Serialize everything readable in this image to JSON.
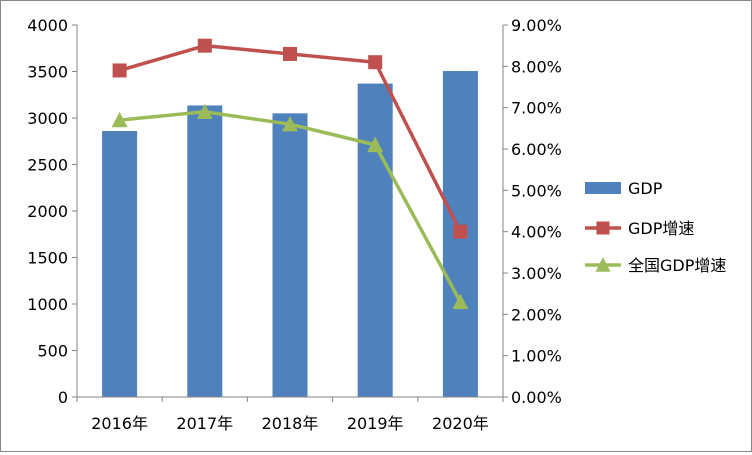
{
  "chart_data": {
    "type": "bar",
    "categories": [
      "2016年",
      "2017年",
      "2018年",
      "2019年",
      "2020年"
    ],
    "y_left": {
      "ylim": [
        0,
        4000
      ],
      "ticks": [
        "0",
        "500",
        "1000",
        "1500",
        "2000",
        "2500",
        "3000",
        "3500",
        "4000"
      ]
    },
    "y_right": {
      "ylim": [
        0,
        0.09
      ],
      "ticks": [
        "0.00%",
        "1.00%",
        "2.00%",
        "3.00%",
        "4.00%",
        "5.00%",
        "6.00%",
        "7.00%",
        "8.00%",
        "9.00%"
      ]
    },
    "series": [
      {
        "name": "GDP",
        "type": "bar",
        "axis": "left",
        "color": "#4f81bd",
        "values": [
          2860,
          3135,
          3050,
          3370,
          3505
        ]
      },
      {
        "name": "GDP增速",
        "type": "line",
        "axis": "right",
        "color": "#c0504d",
        "marker": "square",
        "values": [
          0.079,
          0.085,
          0.083,
          0.081,
          0.04
        ]
      },
      {
        "name": "全国GDP增速",
        "type": "line",
        "axis": "right",
        "color": "#9bbb59",
        "marker": "triangle",
        "values": [
          0.067,
          0.069,
          0.066,
          0.061,
          0.023
        ]
      }
    ],
    "legend_position": "right",
    "grid": false
  }
}
